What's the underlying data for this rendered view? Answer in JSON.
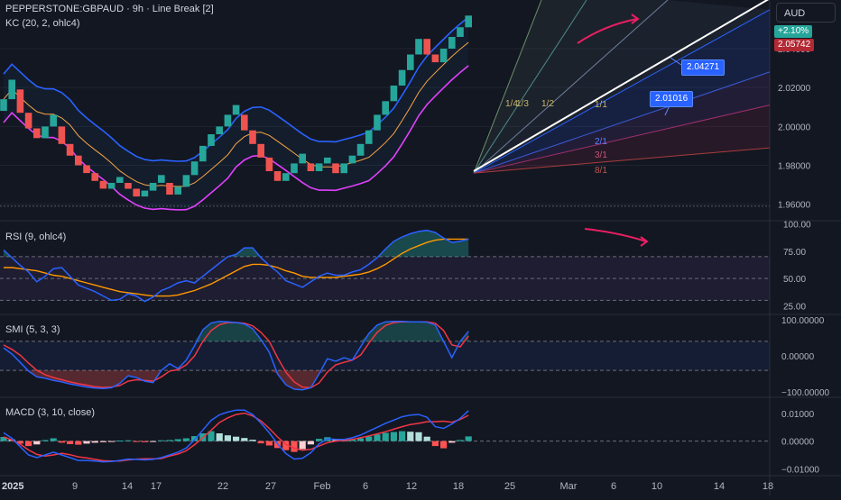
{
  "header": {
    "symbol_line": "PEPPERSTONE:GBPAUD · 9h · Line Break [2]",
    "kc_label": "KC (20, 2, ohlc4)",
    "rsi_label": "RSI (9, ohlc4)",
    "smi_label": "SMI (5, 3, 3)",
    "macd_label": "MACD (3, 10, close)",
    "currency": "AUD"
  },
  "tags": {
    "change": "+2.10%",
    "last_price": "2.05742",
    "box1": "2.04271",
    "box2": "2.01016"
  },
  "fan_labels": [
    "1/4",
    "1/3",
    "1/2",
    "1/1",
    "2/1",
    "3/1",
    "8/1"
  ],
  "colors": {
    "up": "#26a69a",
    "down": "#ef5350",
    "kc_mid": "#f7a545",
    "kc_upper": "#2962ff",
    "kc_lower": "#e040fb",
    "rsi": "#2962ff",
    "rsi_ma": "#ff9800",
    "smi": "#2962ff",
    "smi_signal": "#f23645",
    "macd": "#2962ff",
    "macd_signal": "#f23645",
    "trendline": "#ffffff",
    "arrow": "#e91e63"
  },
  "chart_data": [
    {
      "type": "line",
      "pane": "price",
      "title": "PEPPERSTONE:GBPAUD · 9h · Line Break [2]",
      "y_ticks": [
        "2.04000",
        "2.02000",
        "2.00000",
        "1.98000",
        "1.96000"
      ],
      "ylim": [
        1.952,
        2.065
      ],
      "x_ticks": [
        "2025",
        "9",
        "14",
        "17",
        "22",
        "27",
        "Feb",
        "6",
        "12",
        "18",
        "25",
        "Mar",
        "6",
        "10",
        "14",
        "18"
      ],
      "bricks": [
        {
          "i": 0,
          "o": 2.008,
          "c": 2.014
        },
        {
          "i": 1,
          "o": 2.014,
          "c": 2.024
        },
        {
          "i": 2,
          "o": 2.019,
          "c": 2.007
        },
        {
          "i": 3,
          "o": 2.007,
          "c": 1.999
        },
        {
          "i": 4,
          "o": 1.999,
          "c": 1.994
        },
        {
          "i": 5,
          "o": 1.994,
          "c": 2.0
        },
        {
          "i": 6,
          "o": 2.0,
          "c": 2.006
        },
        {
          "i": 7,
          "o": 2.0,
          "c": 1.991
        },
        {
          "i": 8,
          "o": 1.991,
          "c": 1.985
        },
        {
          "i": 9,
          "o": 1.985,
          "c": 1.98
        },
        {
          "i": 10,
          "o": 1.98,
          "c": 1.976
        },
        {
          "i": 11,
          "o": 1.976,
          "c": 1.972
        },
        {
          "i": 12,
          "o": 1.972,
          "c": 1.968
        },
        {
          "i": 13,
          "o": 1.968,
          "c": 1.971
        },
        {
          "i": 14,
          "o": 1.971,
          "c": 1.974
        },
        {
          "i": 15,
          "o": 1.971,
          "c": 1.968
        },
        {
          "i": 16,
          "o": 1.968,
          "c": 1.964
        },
        {
          "i": 17,
          "o": 1.964,
          "c": 1.967
        },
        {
          "i": 18,
          "o": 1.967,
          "c": 1.971
        },
        {
          "i": 19,
          "o": 1.971,
          "c": 1.975
        },
        {
          "i": 20,
          "o": 1.971,
          "c": 1.965
        },
        {
          "i": 21,
          "o": 1.965,
          "c": 1.969
        },
        {
          "i": 22,
          "o": 1.969,
          "c": 1.975
        },
        {
          "i": 23,
          "o": 1.975,
          "c": 1.982
        },
        {
          "i": 24,
          "o": 1.982,
          "c": 1.99
        },
        {
          "i": 25,
          "o": 1.99,
          "c": 1.996
        },
        {
          "i": 26,
          "o": 1.996,
          "c": 2.0
        },
        {
          "i": 27,
          "o": 2.0,
          "c": 2.006
        },
        {
          "i": 28,
          "o": 2.006,
          "c": 2.011
        },
        {
          "i": 29,
          "o": 2.006,
          "c": 1.998
        },
        {
          "i": 30,
          "o": 1.998,
          "c": 1.991
        },
        {
          "i": 31,
          "o": 1.991,
          "c": 1.984
        },
        {
          "i": 32,
          "o": 1.984,
          "c": 1.977
        },
        {
          "i": 33,
          "o": 1.977,
          "c": 1.972
        },
        {
          "i": 34,
          "o": 1.972,
          "c": 1.976
        },
        {
          "i": 35,
          "o": 1.976,
          "c": 1.981
        },
        {
          "i": 36,
          "o": 1.981,
          "c": 1.986
        },
        {
          "i": 37,
          "o": 1.981,
          "c": 1.977
        },
        {
          "i": 38,
          "o": 1.977,
          "c": 1.981
        },
        {
          "i": 39,
          "o": 1.981,
          "c": 1.984
        },
        {
          "i": 40,
          "o": 1.981,
          "c": 1.976
        },
        {
          "i": 41,
          "o": 1.976,
          "c": 1.981
        },
        {
          "i": 42,
          "o": 1.981,
          "c": 1.985
        },
        {
          "i": 43,
          "o": 1.985,
          "c": 1.991
        },
        {
          "i": 44,
          "o": 1.991,
          "c": 1.998
        },
        {
          "i": 45,
          "o": 1.998,
          "c": 2.006
        },
        {
          "i": 46,
          "o": 2.006,
          "c": 2.013
        },
        {
          "i": 47,
          "o": 2.013,
          "c": 2.021
        },
        {
          "i": 48,
          "o": 2.021,
          "c": 2.029
        },
        {
          "i": 49,
          "o": 2.029,
          "c": 2.037
        },
        {
          "i": 50,
          "o": 2.037,
          "c": 2.045
        },
        {
          "i": 51,
          "o": 2.045,
          "c": 2.037
        },
        {
          "i": 52,
          "o": 2.037,
          "c": 2.033
        },
        {
          "i": 53,
          "o": 2.033,
          "c": 2.04
        },
        {
          "i": 54,
          "o": 2.04,
          "c": 2.046
        },
        {
          "i": 55,
          "o": 2.046,
          "c": 2.051
        },
        {
          "i": 56,
          "o": 2.051,
          "c": 2.057
        }
      ]
    },
    {
      "type": "line",
      "pane": "rsi",
      "title": "RSI (9, ohlc4)",
      "y_ticks": [
        "100.00",
        "75.00",
        "50.00",
        "25.00"
      ],
      "ylim": [
        18,
        102
      ],
      "series": [
        {
          "name": "RSI",
          "values": [
            76,
            69,
            62,
            56,
            47,
            52,
            59,
            60,
            52,
            44,
            41,
            38,
            34,
            30,
            31,
            36,
            34,
            29,
            33,
            39,
            42,
            46,
            48,
            46,
            52,
            58,
            64,
            70,
            72,
            78,
            78,
            69,
            62,
            56,
            48,
            45,
            42,
            47,
            52,
            55,
            53,
            53,
            56,
            58,
            63,
            69,
            77,
            84,
            88,
            91,
            93,
            94,
            92,
            87,
            83,
            84,
            86
          ]
        },
        {
          "name": "MA",
          "values": [
            60,
            60,
            59,
            58,
            57,
            55,
            53,
            52,
            50,
            48,
            46,
            44,
            42,
            40,
            38,
            37,
            36,
            35,
            34,
            34,
            34,
            35,
            37,
            39,
            42,
            45,
            49,
            53,
            57,
            61,
            63,
            63,
            62,
            60,
            57,
            55,
            52,
            51,
            51,
            51,
            51,
            52,
            53,
            54,
            56,
            59,
            63,
            68,
            73,
            77,
            80,
            83,
            85,
            86,
            86,
            86,
            86
          ]
        }
      ]
    },
    {
      "type": "line",
      "pane": "smi",
      "title": "SMI (5, 3, 3)",
      "y_ticks": [
        "100.00000",
        "0.00000",
        "−100.00000"
      ],
      "ylim": [
        -112,
        112
      ],
      "series": [
        {
          "name": "SMI",
          "values": [
            22,
            5,
            -18,
            -42,
            -58,
            -62,
            -68,
            -72,
            -78,
            -82,
            -86,
            -89,
            -90,
            -88,
            -76,
            -55,
            -60,
            -70,
            -74,
            -40,
            -22,
            -35,
            -12,
            28,
            72,
            91,
            95,
            94,
            92,
            88,
            75,
            45,
            10,
            -50,
            -80,
            -92,
            -94,
            -88,
            -50,
            -8,
            -15,
            -5,
            -12,
            25,
            62,
            85,
            94,
            95,
            95,
            94,
            94,
            93,
            85,
            40,
            -5,
            40,
            68
          ]
        },
        {
          "name": "Signal",
          "values": [
            30,
            18,
            2,
            -20,
            -40,
            -52,
            -60,
            -66,
            -72,
            -77,
            -81,
            -85,
            -87,
            -86,
            -82,
            -70,
            -66,
            -68,
            -70,
            -58,
            -42,
            -38,
            -25,
            0,
            40,
            70,
            86,
            92,
            92,
            90,
            83,
            65,
            40,
            -5,
            -45,
            -72,
            -86,
            -88,
            -75,
            -45,
            -25,
            -18,
            -12,
            2,
            35,
            65,
            84,
            92,
            94,
            94,
            94,
            94,
            90,
            70,
            30,
            25,
            55
          ]
        }
      ]
    },
    {
      "type": "bar",
      "pane": "macd",
      "title": "MACD (3, 10, close)",
      "y_ticks": [
        "0.01000",
        "0.00000",
        "−0.01000"
      ],
      "ylim": [
        -0.0125,
        0.0155
      ],
      "series": [
        {
          "name": "Histogram",
          "values": [
            0.0015,
            0.0006,
            -0.0009,
            -0.0018,
            -0.0012,
            0.0004,
            0.001,
            -0.0006,
            -0.0011,
            -0.0013,
            -0.0009,
            -0.0006,
            -0.0004,
            -0.0002,
            0.0002,
            0.0003,
            -0.0001,
            -0.0004,
            -0.0002,
            0.0003,
            0.0004,
            0.0007,
            0.001,
            0.0018,
            0.0028,
            0.0036,
            0.0028,
            0.0021,
            0.0016,
            0.0011,
            0.0005,
            -0.0008,
            -0.0016,
            -0.0025,
            -0.0033,
            -0.0039,
            -0.0029,
            -0.0012,
            0.0008,
            0.0014,
            0.0006,
            0.0003,
            0.0006,
            0.001,
            0.0017,
            0.0024,
            0.003,
            0.0033,
            0.0036,
            0.0034,
            0.0032,
            0.0016,
            -0.0018,
            -0.0026,
            -0.0006,
            0.0004,
            0.0017
          ]
        },
        {
          "name": "MACD",
          "values": [
            0.003,
            0.001,
            -0.002,
            -0.005,
            -0.006,
            -0.005,
            -0.004,
            -0.005,
            -0.006,
            -0.007,
            -0.007,
            -0.0072,
            -0.0075,
            -0.0074,
            -0.007,
            -0.0065,
            -0.0066,
            -0.0068,
            -0.0066,
            -0.006,
            -0.005,
            -0.004,
            -0.0025,
            0.0005,
            0.004,
            0.0075,
            0.0095,
            0.0105,
            0.0112,
            0.0112,
            0.0096,
            0.0065,
            0.003,
            -0.001,
            -0.0045,
            -0.0065,
            -0.0062,
            -0.0042,
            -0.001,
            0.0008,
            0.0006,
            0.0006,
            0.0012,
            0.0022,
            0.0036,
            0.005,
            0.0064,
            0.0076,
            0.0088,
            0.0094,
            0.0096,
            0.0086,
            0.0052,
            0.0046,
            0.0062,
            0.0082,
            0.011
          ]
        },
        {
          "name": "Signal",
          "values": [
            0.0015,
            0.0004,
            -0.0011,
            -0.0032,
            -0.0048,
            -0.0054,
            -0.005,
            -0.0044,
            -0.0049,
            -0.0057,
            -0.0061,
            -0.0066,
            -0.0071,
            -0.0072,
            -0.0072,
            -0.0068,
            -0.0065,
            -0.0064,
            -0.0064,
            -0.0063,
            -0.0054,
            -0.0047,
            -0.0035,
            -0.0013,
            0.0012,
            0.0039,
            0.0067,
            0.0084,
            0.0096,
            0.0101,
            0.0091,
            0.0073,
            0.0046,
            0.0015,
            -0.0012,
            -0.0026,
            -0.0033,
            -0.003,
            -0.0018,
            -0.0006,
            0.0,
            0.0003,
            0.0006,
            0.0012,
            0.0019,
            0.0026,
            0.0034,
            0.0043,
            0.0052,
            0.006,
            0.0064,
            0.007,
            0.007,
            0.0072,
            0.0068,
            0.0078,
            0.0093
          ]
        }
      ]
    }
  ]
}
